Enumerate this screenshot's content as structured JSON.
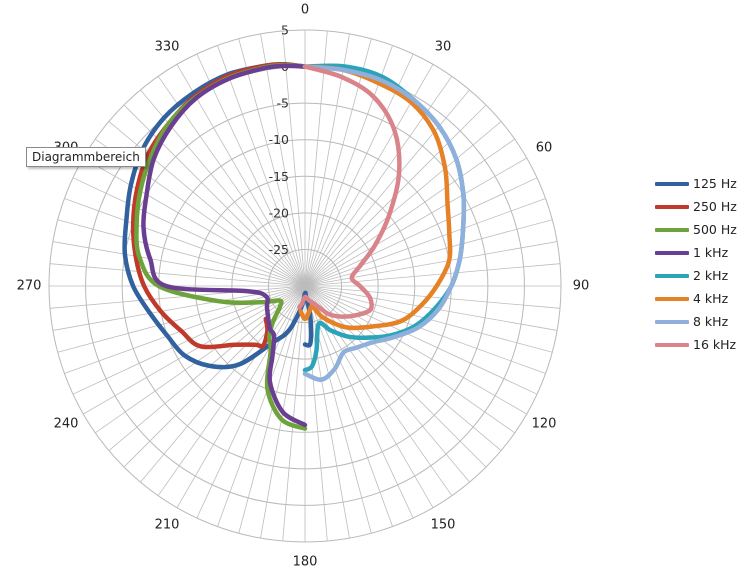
{
  "tooltip": {
    "text": "Diagrammbereich"
  },
  "chart_data": {
    "type": "polar-line",
    "title": "",
    "angle_labels": [
      "0",
      "30",
      "60",
      "90",
      "120",
      "150",
      "180",
      "210",
      "240",
      "270",
      "300",
      "330"
    ],
    "radial_tick_labels": [
      "5",
      "0",
      "-5",
      "-10",
      "-15",
      "-20",
      "-25"
    ],
    "radial_range": [
      -30,
      5
    ],
    "angular_grid_step_deg": 5,
    "radial_grid_step": 5,
    "series": [
      {
        "name": "125 Hz",
        "color": "#31619e",
        "points": [
          [
            180,
            -22
          ],
          [
            175,
            -22
          ],
          [
            172,
            -24
          ],
          [
            170,
            -26
          ],
          [
            172,
            -28
          ],
          [
            175,
            -28.5
          ],
          [
            180,
            -29
          ],
          [
            190,
            -27
          ],
          [
            200,
            -23.5
          ],
          [
            210,
            -21
          ],
          [
            220,
            -16
          ],
          [
            230,
            -13
          ],
          [
            240,
            -11
          ],
          [
            250,
            -10
          ],
          [
            260,
            -8.5
          ],
          [
            270,
            -6.5
          ],
          [
            280,
            -5
          ],
          [
            290,
            -4
          ],
          [
            300,
            -2.5
          ],
          [
            310,
            -1
          ],
          [
            320,
            0
          ],
          [
            330,
            0.5
          ],
          [
            340,
            0.8
          ],
          [
            350,
            0.6
          ],
          [
            355,
            0.4
          ],
          [
            360,
            0
          ]
        ]
      },
      {
        "name": "250 Hz",
        "color": "#c0392b",
        "points": [
          [
            230,
            -23
          ],
          [
            220,
            -22
          ],
          [
            215,
            -20
          ],
          [
            220,
            -19.5
          ],
          [
            230,
            -17.5
          ],
          [
            240,
            -13.5
          ],
          [
            250,
            -12
          ],
          [
            260,
            -10
          ],
          [
            270,
            -8
          ],
          [
            280,
            -6.5
          ],
          [
            290,
            -5
          ],
          [
            300,
            -3.5
          ],
          [
            310,
            -2
          ],
          [
            320,
            -1
          ],
          [
            330,
            0
          ],
          [
            340,
            0.6
          ],
          [
            350,
            0.6
          ],
          [
            355,
            0.4
          ],
          [
            360,
            0
          ]
        ]
      },
      {
        "name": "500 Hz",
        "color": "#6ea23a",
        "points": [
          [
            180,
            -10.5
          ],
          [
            190,
            -11.5
          ],
          [
            200,
            -15
          ],
          [
            208,
            -20
          ],
          [
            215,
            -21.5
          ],
          [
            222,
            -23.5
          ],
          [
            230,
            -25.5
          ],
          [
            240,
            -26
          ],
          [
            250,
            -23.5
          ],
          [
            260,
            -18
          ],
          [
            270,
            -10
          ],
          [
            280,
            -7
          ],
          [
            290,
            -5.5
          ],
          [
            300,
            -4
          ],
          [
            310,
            -2.5
          ],
          [
            320,
            -1
          ],
          [
            330,
            -0.2
          ],
          [
            340,
            0.3
          ],
          [
            350,
            0.4
          ],
          [
            355,
            0.3
          ],
          [
            360,
            0
          ]
        ]
      },
      {
        "name": "1 kHz",
        "color": "#6a3f92",
        "points": [
          [
            180,
            -11
          ],
          [
            190,
            -12.5
          ],
          [
            200,
            -16
          ],
          [
            205,
            -19.5
          ],
          [
            212,
            -22
          ],
          [
            220,
            -22.5
          ],
          [
            240,
            -24
          ],
          [
            255,
            -24.5
          ],
          [
            265,
            -22
          ],
          [
            270,
            -11
          ],
          [
            280,
            -8.5
          ],
          [
            290,
            -6.5
          ],
          [
            300,
            -5
          ],
          [
            310,
            -3
          ],
          [
            320,
            -1.5
          ],
          [
            330,
            -0.3
          ],
          [
            340,
            0.2
          ],
          [
            350,
            0.3
          ],
          [
            355,
            0.2
          ],
          [
            360,
            0
          ]
        ]
      },
      {
        "name": "2 kHz",
        "color": "#2ba3b8",
        "points": [
          [
            0,
            0
          ],
          [
            10,
            0.5
          ],
          [
            20,
            0.5
          ],
          [
            30,
            -0.5
          ],
          [
            40,
            -1.5
          ],
          [
            50,
            -3
          ],
          [
            60,
            -5
          ],
          [
            70,
            -7
          ],
          [
            80,
            -8.5
          ],
          [
            90,
            -10
          ],
          [
            100,
            -12
          ],
          [
            110,
            -14
          ],
          [
            120,
            -16.5
          ],
          [
            130,
            -19
          ],
          [
            140,
            -21
          ],
          [
            150,
            -23
          ],
          [
            160,
            -24.5
          ],
          [
            170,
            -21
          ],
          [
            175,
            -19
          ],
          [
            180,
            -18.5
          ]
        ]
      },
      {
        "name": "4 kHz",
        "color": "#e58126",
        "points": [
          [
            0,
            0
          ],
          [
            10,
            0
          ],
          [
            20,
            -0.5
          ],
          [
            30,
            -1
          ],
          [
            40,
            -2.5
          ],
          [
            50,
            -5
          ],
          [
            60,
            -7.5
          ],
          [
            70,
            -9
          ],
          [
            80,
            -10
          ],
          [
            90,
            -12
          ],
          [
            100,
            -14
          ],
          [
            110,
            -16
          ],
          [
            120,
            -19
          ],
          [
            135,
            -22
          ],
          [
            150,
            -25
          ],
          [
            160,
            -27
          ],
          [
            170,
            -26.5
          ],
          [
            180,
            -25.5
          ],
          [
            190,
            -26.5
          ]
        ]
      },
      {
        "name": "8 kHz",
        "color": "#8fb0da",
        "points": [
          [
            0,
            0
          ],
          [
            10,
            0
          ],
          [
            20,
            0
          ],
          [
            30,
            -0.5
          ],
          [
            40,
            -1.5
          ],
          [
            50,
            -3
          ],
          [
            60,
            -5
          ],
          [
            70,
            -7
          ],
          [
            80,
            -8.5
          ],
          [
            90,
            -10
          ],
          [
            100,
            -11.5
          ],
          [
            110,
            -13.5
          ],
          [
            120,
            -16
          ],
          [
            130,
            -18
          ],
          [
            140,
            -19
          ],
          [
            150,
            -19.5
          ],
          [
            160,
            -18
          ],
          [
            170,
            -17
          ],
          [
            180,
            -18
          ]
        ]
      },
      {
        "name": "16 kHz",
        "color": "#d9848a",
        "points": [
          [
            0,
            0
          ],
          [
            10,
            -1
          ],
          [
            20,
            -2.5
          ],
          [
            30,
            -5.5
          ],
          [
            40,
            -10
          ],
          [
            50,
            -15
          ],
          [
            60,
            -19
          ],
          [
            70,
            -22
          ],
          [
            80,
            -23.5
          ],
          [
            90,
            -22.5
          ],
          [
            100,
            -21
          ],
          [
            110,
            -20.5
          ],
          [
            120,
            -22
          ],
          [
            130,
            -23.5
          ],
          [
            140,
            -25
          ],
          [
            150,
            -27
          ],
          [
            165,
            -28
          ],
          [
            180,
            -28.5
          ],
          [
            190,
            -27.5
          ],
          [
            195,
            -27
          ]
        ]
      }
    ]
  }
}
